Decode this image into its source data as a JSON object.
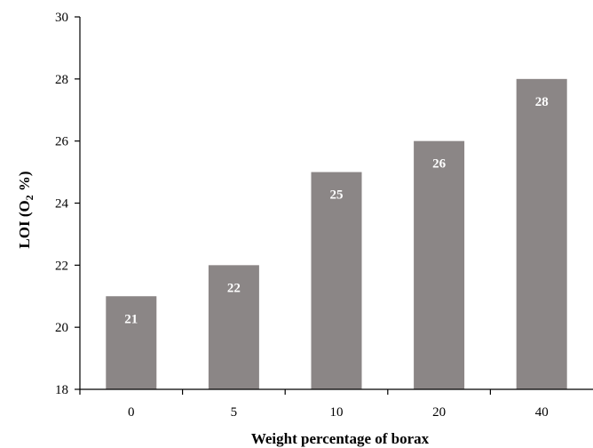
{
  "chart_data": {
    "type": "bar",
    "categories": [
      "0",
      "5",
      "10",
      "20",
      "40"
    ],
    "values": [
      21,
      22,
      25,
      26,
      28
    ],
    "data_labels": [
      "21",
      "22",
      "25",
      "26",
      "28"
    ],
    "title": "",
    "xlabel": "Weight percentage of borax",
    "ylabel_main": "LOI (O",
    "ylabel_sub": "2",
    "ylabel_tail": " %)",
    "ylim": [
      18,
      30
    ],
    "yticks": [
      18,
      20,
      22,
      24,
      26,
      28,
      30
    ],
    "grid": false,
    "legend": "none",
    "bar_color": "#8b8686",
    "axis_color": "#000000",
    "label_color": "#ffffff"
  }
}
